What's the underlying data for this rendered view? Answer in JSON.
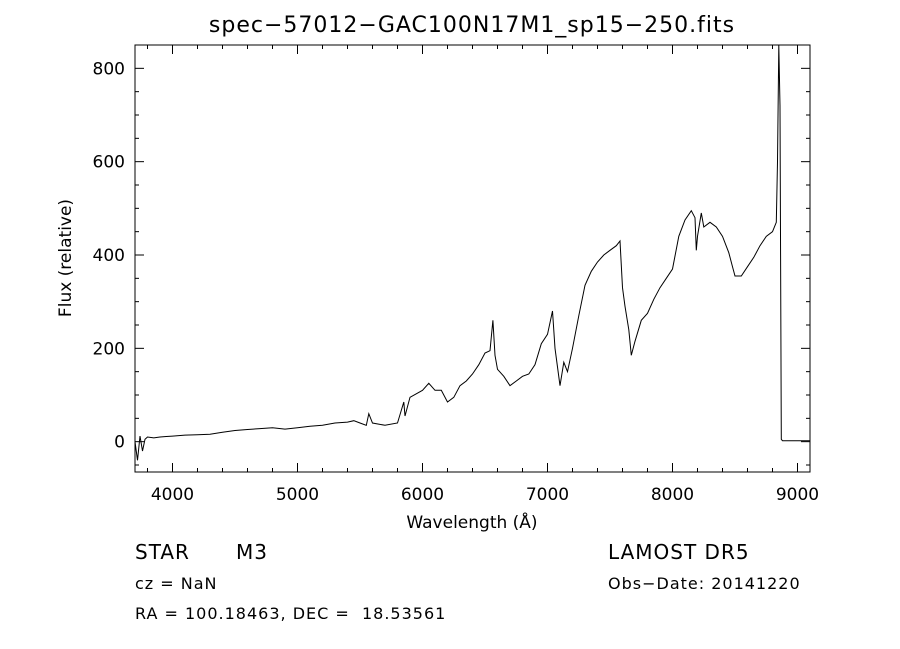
{
  "chart_data": {
    "type": "line",
    "title": "spec−57012−GAC100N17M1_sp15−250.fits",
    "xlabel": "Wavelength (Å)",
    "ylabel": "Flux (relative)",
    "xlim": [
      3700,
      9100
    ],
    "ylim": [
      -65,
      850
    ],
    "xticks": [
      4000,
      5000,
      6000,
      7000,
      8000,
      9000
    ],
    "yticks": [
      0,
      200,
      400,
      600,
      800
    ],
    "grid": false,
    "series": [
      {
        "x": [
          3700,
          3720,
          3740,
          3760,
          3780,
          3800,
          3850,
          3900,
          3950,
          4000,
          4100,
          4200,
          4300,
          4400,
          4500,
          4600,
          4700,
          4800,
          4900,
          5000,
          5100,
          5200,
          5300,
          5400,
          5450,
          5500,
          5550,
          5570,
          5600,
          5700,
          5800,
          5850,
          5860,
          5900,
          6000,
          6050,
          6100,
          6150,
          6200,
          6250,
          6300,
          6350,
          6400,
          6450,
          6500,
          6540,
          6563,
          6580,
          6600,
          6650,
          6700,
          6750,
          6800,
          6850,
          6900,
          6950,
          7000,
          7040,
          7060,
          7080,
          7100,
          7130,
          7160,
          7200,
          7250,
          7300,
          7350,
          7400,
          7450,
          7500,
          7550,
          7580,
          7600,
          7620,
          7650,
          7670,
          7700,
          7750,
          7800,
          7850,
          7900,
          7950,
          8000,
          8050,
          8100,
          8150,
          8180,
          8190,
          8200,
          8230,
          8250,
          8300,
          8350,
          8400,
          8450,
          8480,
          8500,
          8550,
          8600,
          8650,
          8700,
          8750,
          8800,
          8830,
          8840,
          8850,
          8860,
          8870,
          8880,
          8900,
          8950,
          9000,
          9100
        ],
        "y": [
          0,
          -40,
          12,
          -20,
          5,
          10,
          8,
          10,
          11,
          12,
          14,
          15,
          16,
          20,
          24,
          26,
          28,
          30,
          27,
          30,
          33,
          35,
          40,
          42,
          45,
          40,
          35,
          60,
          40,
          35,
          40,
          85,
          55,
          95,
          110,
          125,
          110,
          110,
          85,
          95,
          120,
          130,
          145,
          165,
          190,
          195,
          260,
          185,
          155,
          140,
          120,
          130,
          140,
          145,
          165,
          210,
          230,
          280,
          200,
          160,
          120,
          170,
          150,
          200,
          270,
          335,
          365,
          385,
          400,
          410,
          420,
          430,
          330,
          290,
          240,
          185,
          215,
          260,
          275,
          305,
          330,
          350,
          370,
          440,
          475,
          495,
          480,
          410,
          440,
          490,
          460,
          470,
          460,
          440,
          405,
          375,
          355,
          355,
          375,
          395,
          420,
          440,
          450,
          470,
          600,
          850,
          720,
          5,
          2,
          2,
          2,
          2,
          2
        ]
      }
    ]
  },
  "info": {
    "object_type": "STAR",
    "subclass": "M3",
    "cz": "cz = NaN",
    "coords": "RA = 100.18463, DEC =  18.53561",
    "survey": "LAMOST DR5",
    "obs_date": "Obs−Date: 20141220"
  }
}
